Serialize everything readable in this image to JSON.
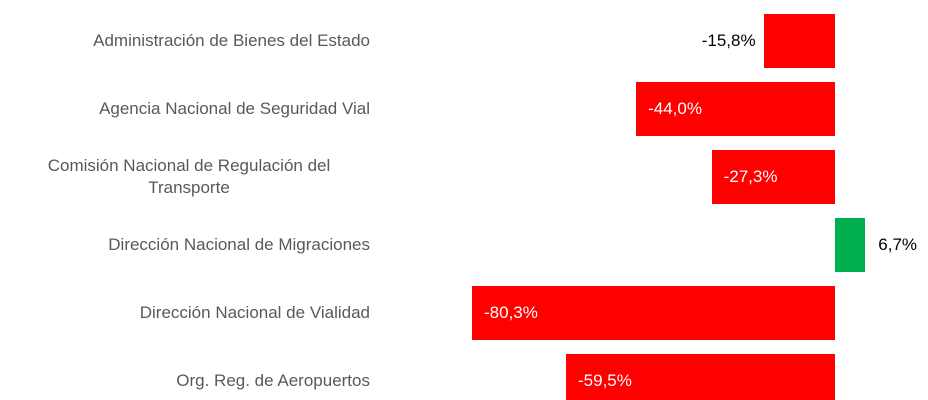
{
  "chart_data": {
    "type": "bar",
    "orientation": "horizontal",
    "categories": [
      "Administración de Bienes del Estado",
      "Agencia Nacional de Seguridad Vial",
      "Comisión Nacional de Regulación del Transporte",
      "Dirección Nacional de Migraciones",
      "Dirección Nacional de Vialidad",
      "Org. Reg. de Aeropuertos"
    ],
    "values": [
      -15.8,
      -44.0,
      -27.3,
      6.7,
      -80.3,
      -59.5
    ],
    "value_labels": [
      "-15,8%",
      "-44,0%",
      "-27,3%",
      "6,7%",
      "-80,3%",
      "-59,5%"
    ],
    "negative_color": "#ff0000",
    "positive_color": "#00b050"
  }
}
